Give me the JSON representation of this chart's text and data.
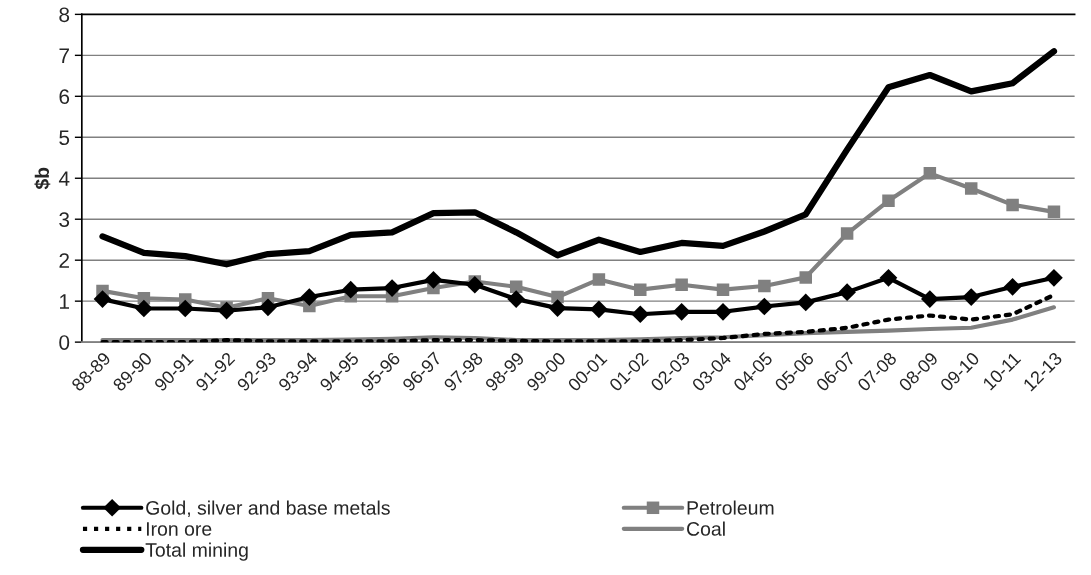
{
  "chart_data": {
    "type": "line",
    "ylabel": "$b",
    "categories": [
      "88-89",
      "89-90",
      "90-91",
      "91-92",
      "92-93",
      "93-94",
      "94-95",
      "95-96",
      "96-97",
      "97-98",
      "98-99",
      "99-00",
      "00-01",
      "01-02",
      "02-03",
      "03-04",
      "04-05",
      "05-06",
      "06-07",
      "07-08",
      "08-09",
      "09-10",
      "10-11",
      "12-13"
    ],
    "series": [
      {
        "name": "Gold, silver and base metals",
        "color": "#000000",
        "marker": "diamond",
        "line_style": "solid",
        "values": [
          1.05,
          0.82,
          0.82,
          0.77,
          0.85,
          1.1,
          1.28,
          1.32,
          1.52,
          1.4,
          1.05,
          0.83,
          0.8,
          0.68,
          0.74,
          0.74,
          0.87,
          0.97,
          1.22,
          1.57,
          1.05,
          1.1,
          1.35,
          1.57
        ]
      },
      {
        "name": "Petroleum",
        "color": "#808080",
        "marker": "square",
        "line_style": "solid",
        "values": [
          1.25,
          1.07,
          1.04,
          0.84,
          1.07,
          0.88,
          1.12,
          1.12,
          1.32,
          1.48,
          1.35,
          1.1,
          1.53,
          1.28,
          1.4,
          1.28,
          1.37,
          1.58,
          2.65,
          3.45,
          4.12,
          3.75,
          3.35,
          3.18
        ]
      },
      {
        "name": "Iron ore",
        "color": "#000000",
        "marker": "none",
        "line_style": "dotted",
        "values": [
          0,
          0,
          0,
          0.05,
          0.02,
          0.02,
          0.02,
          0.02,
          0.05,
          0.05,
          0.03,
          0.02,
          0.02,
          0.02,
          0.05,
          0.1,
          0.2,
          0.25,
          0.35,
          0.55,
          0.65,
          0.55,
          0.68,
          1.15
        ]
      },
      {
        "name": "Coal",
        "color": "#808080",
        "marker": "none",
        "line_style": "solid",
        "values": [
          0.05,
          0.05,
          0.05,
          0.05,
          0.05,
          0.05,
          0.06,
          0.08,
          0.12,
          0.1,
          0.05,
          0.05,
          0.05,
          0.07,
          0.1,
          0.12,
          0.17,
          0.22,
          0.25,
          0.28,
          0.32,
          0.35,
          0.55,
          0.85
        ]
      },
      {
        "name": "Total mining",
        "color": "#000000",
        "marker": "none",
        "line_style": "solid",
        "values": [
          2.58,
          2.18,
          2.1,
          1.9,
          2.15,
          2.22,
          2.62,
          2.68,
          3.15,
          3.17,
          2.68,
          2.12,
          2.5,
          2.2,
          2.42,
          2.35,
          2.7,
          3.12,
          4.7,
          6.22,
          6.52,
          6.12,
          6.32,
          7.1
        ]
      }
    ],
    "ylim": [
      0,
      8
    ],
    "yticks": [
      0,
      1,
      2,
      3,
      4,
      5,
      6,
      7,
      8
    ],
    "grid": "y",
    "legend": "bottom"
  }
}
